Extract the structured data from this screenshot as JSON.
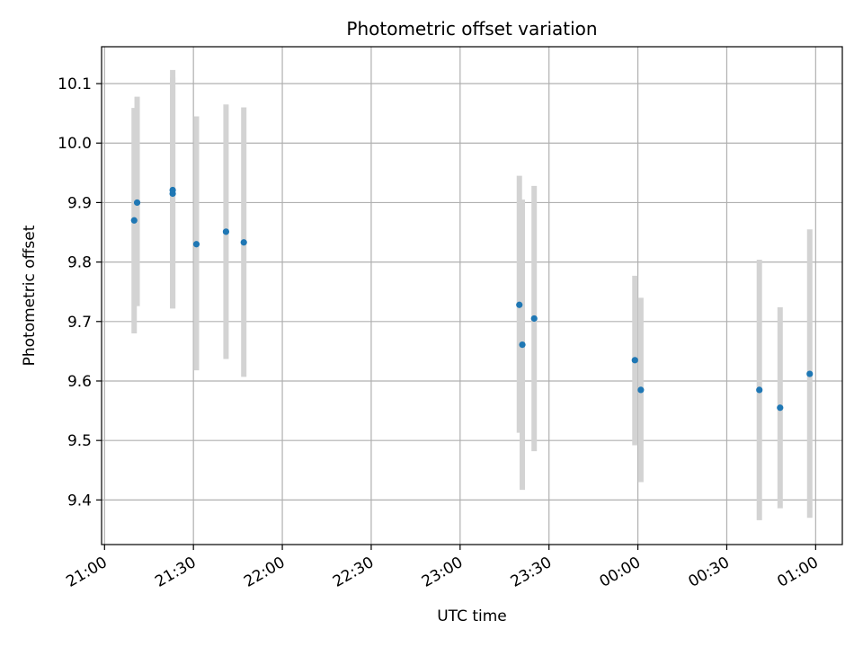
{
  "chart_data": {
    "type": "scatter",
    "title": "Photometric offset variation",
    "xlabel": "UTC time",
    "ylabel": "Photometric offset",
    "x_axis_kind": "time",
    "xlim": [
      "20:59",
      "01:09"
    ],
    "ylim": [
      9.325,
      10.162
    ],
    "grid": true,
    "x_ticks": [
      "21:00",
      "21:30",
      "22:00",
      "22:30",
      "23:00",
      "23:30",
      "00:00",
      "00:30",
      "01:00"
    ],
    "y_ticks": [
      9.4,
      9.5,
      9.6,
      9.7,
      9.8,
      9.9,
      10.0,
      10.1
    ],
    "colors": {
      "points": "#1f77b4",
      "error_bars": "#d3d3d3",
      "grid": "#b0b0b0",
      "axes": "#000000"
    },
    "points": [
      {
        "x": "21:10",
        "y": 9.87,
        "ymin": 9.68,
        "ymax": 10.059
      },
      {
        "x": "21:11",
        "y": 9.9,
        "ymin": 9.726,
        "ymax": 10.078
      },
      {
        "x": "21:23",
        "y": 9.921,
        "ymin": 9.722,
        "ymax": 10.123
      },
      {
        "x": "21:23",
        "y": 9.915,
        "ymin": 9.722,
        "ymax": 10.11
      },
      {
        "x": "21:31",
        "y": 9.83,
        "ymin": 9.618,
        "ymax": 10.045
      },
      {
        "x": "21:41",
        "y": 9.851,
        "ymin": 9.637,
        "ymax": 10.065
      },
      {
        "x": "21:47",
        "y": 9.833,
        "ymin": 9.607,
        "ymax": 10.06
      },
      {
        "x": "23:20",
        "y": 9.728,
        "ymin": 9.513,
        "ymax": 9.945
      },
      {
        "x": "23:21",
        "y": 9.661,
        "ymin": 9.417,
        "ymax": 9.905
      },
      {
        "x": "23:25",
        "y": 9.705,
        "ymin": 9.482,
        "ymax": 9.928
      },
      {
        "x": "23:59",
        "y": 9.635,
        "ymin": 9.492,
        "ymax": 9.777
      },
      {
        "x": "00:01",
        "y": 9.585,
        "ymin": 9.43,
        "ymax": 9.74
      },
      {
        "x": "00:41",
        "y": 9.585,
        "ymin": 9.366,
        "ymax": 9.804
      },
      {
        "x": "00:48",
        "y": 9.555,
        "ymin": 9.386,
        "ymax": 9.724
      },
      {
        "x": "00:58",
        "y": 9.612,
        "ymin": 9.37,
        "ymax": 9.855
      }
    ]
  }
}
